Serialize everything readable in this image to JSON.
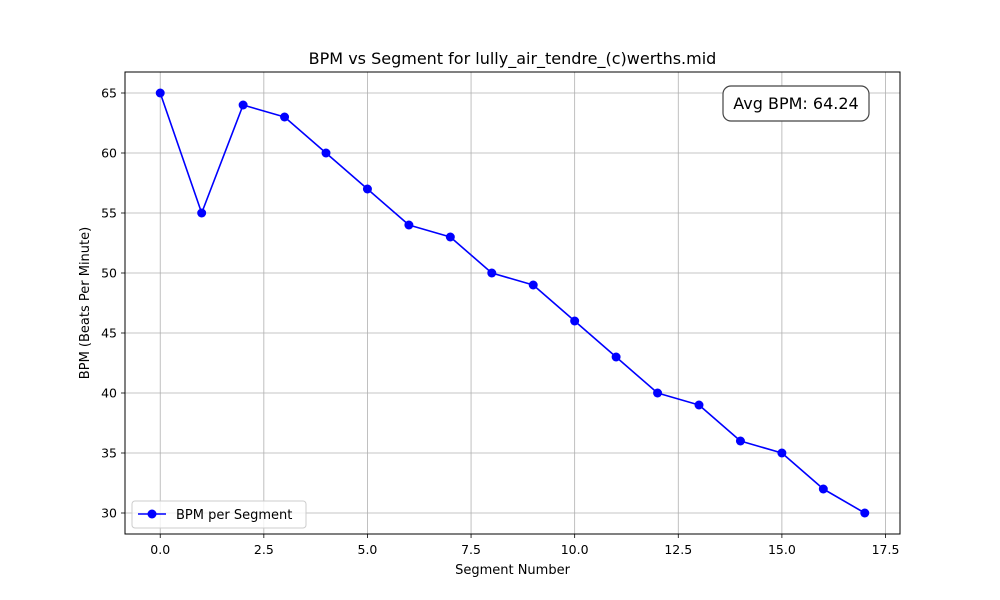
{
  "chart_data": {
    "type": "line",
    "title": "BPM vs Segment for lully_air_tendre_(c)werths.mid",
    "xlabel": "Segment Number",
    "ylabel": "BPM (Beats Per Minute)",
    "xlim": [
      -0.85,
      17.85
    ],
    "ylim": [
      28.25,
      66.75
    ],
    "x_ticks": [
      0.0,
      2.5,
      5.0,
      7.5,
      10.0,
      12.5,
      15.0,
      17.5
    ],
    "x_tick_labels": [
      "0.0",
      "2.5",
      "5.0",
      "7.5",
      "10.0",
      "12.5",
      "15.0",
      "17.5"
    ],
    "y_ticks": [
      30,
      35,
      40,
      45,
      50,
      55,
      60,
      65
    ],
    "y_tick_labels": [
      "30",
      "35",
      "40",
      "45",
      "50",
      "55",
      "60",
      "65"
    ],
    "grid": true,
    "legend_position": "lower-left",
    "series": [
      {
        "name": "BPM per Segment",
        "color": "#0000ff",
        "marker": "circle",
        "x": [
          0,
          1,
          2,
          3,
          4,
          5,
          6,
          7,
          8,
          9,
          10,
          11,
          12,
          13,
          14,
          15,
          16,
          17
        ],
        "y": [
          65,
          55,
          64,
          63,
          60,
          57,
          54,
          53,
          50,
          49,
          46,
          43,
          40,
          39,
          36,
          35,
          32,
          30
        ]
      }
    ],
    "annotation": {
      "text": "Avg BPM: 64.24",
      "position": "top-right"
    }
  }
}
